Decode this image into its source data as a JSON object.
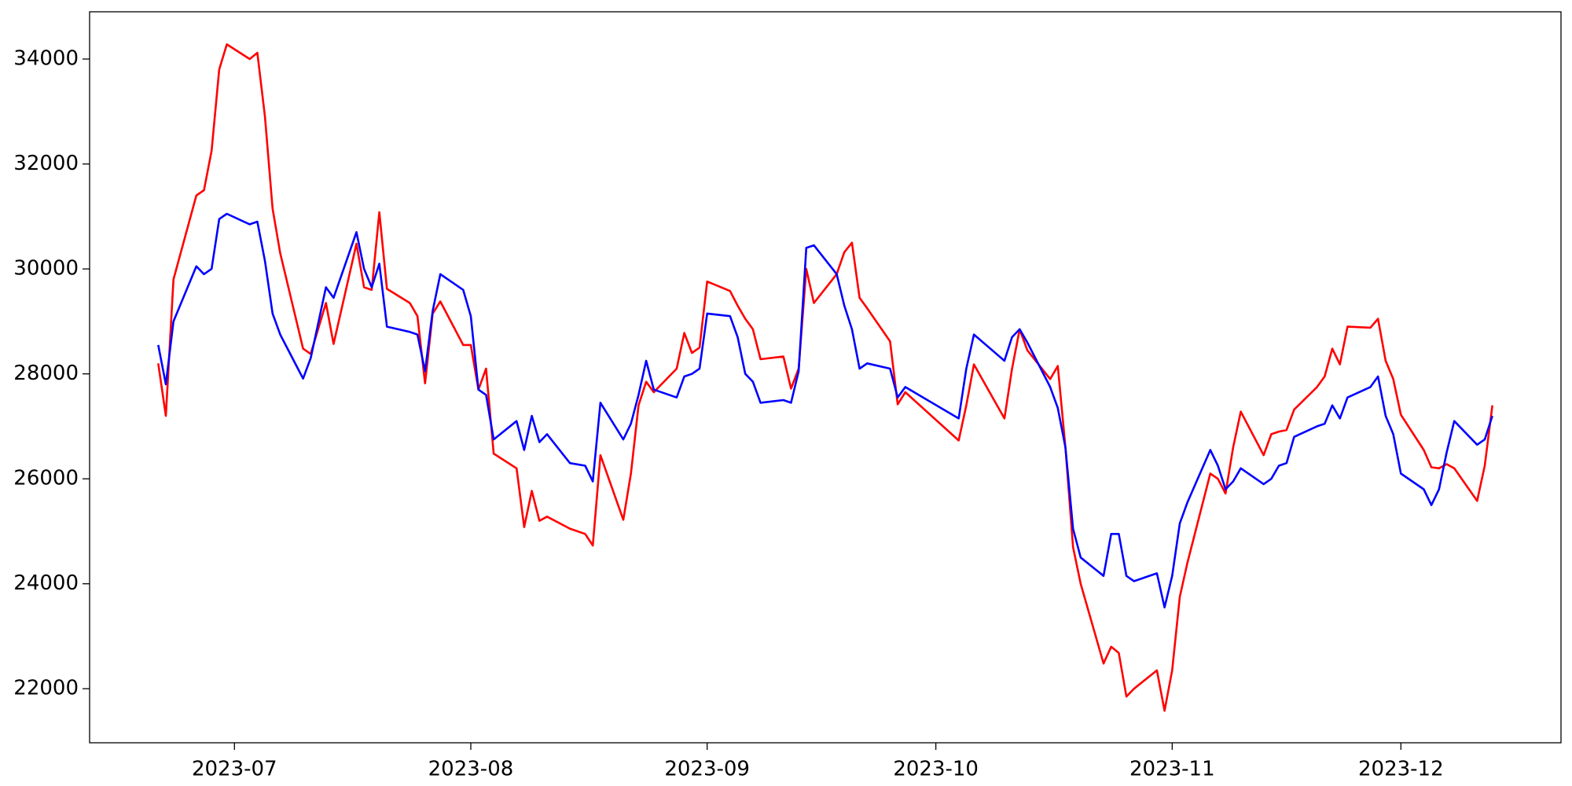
{
  "chart_data": {
    "type": "line",
    "x": [
      "2023-06-21",
      "2023-06-22",
      "2023-06-23",
      "2023-06-26",
      "2023-06-27",
      "2023-06-28",
      "2023-06-29",
      "2023-06-30",
      "2023-07-03",
      "2023-07-04",
      "2023-07-05",
      "2023-07-06",
      "2023-07-07",
      "2023-07-10",
      "2023-07-11",
      "2023-07-13",
      "2023-07-14",
      "2023-07-17",
      "2023-07-18",
      "2023-07-19",
      "2023-07-20",
      "2023-07-21",
      "2023-07-24",
      "2023-07-25",
      "2023-07-26",
      "2023-07-27",
      "2023-07-28",
      "2023-07-31",
      "2023-08-01",
      "2023-08-02",
      "2023-08-03",
      "2023-08-04",
      "2023-08-07",
      "2023-08-08",
      "2023-08-09",
      "2023-08-10",
      "2023-08-11",
      "2023-08-14",
      "2023-08-16",
      "2023-08-17",
      "2023-08-18",
      "2023-08-21",
      "2023-08-22",
      "2023-08-23",
      "2023-08-24",
      "2023-08-25",
      "2023-08-28",
      "2023-08-29",
      "2023-08-30",
      "2023-08-31",
      "2023-09-01",
      "2023-09-04",
      "2023-09-05",
      "2023-09-06",
      "2023-09-07",
      "2023-09-08",
      "2023-09-11",
      "2023-09-12",
      "2023-09-13",
      "2023-09-14",
      "2023-09-15",
      "2023-09-18",
      "2023-09-19",
      "2023-09-20",
      "2023-09-21",
      "2023-09-22",
      "2023-09-25",
      "2023-09-26",
      "2023-09-27",
      "2023-10-04",
      "2023-10-05",
      "2023-10-06",
      "2023-10-10",
      "2023-10-11",
      "2023-10-12",
      "2023-10-13",
      "2023-10-16",
      "2023-10-17",
      "2023-10-18",
      "2023-10-19",
      "2023-10-20",
      "2023-10-23",
      "2023-10-24",
      "2023-10-25",
      "2023-10-26",
      "2023-10-27",
      "2023-10-30",
      "2023-10-31",
      "2023-11-01",
      "2023-11-02",
      "2023-11-03",
      "2023-11-06",
      "2023-11-07",
      "2023-11-08",
      "2023-11-09",
      "2023-11-10",
      "2023-11-13",
      "2023-11-14",
      "2023-11-15",
      "2023-11-16",
      "2023-11-17",
      "2023-11-20",
      "2023-11-21",
      "2023-11-22",
      "2023-11-23",
      "2023-11-24",
      "2023-11-27",
      "2023-11-28",
      "2023-11-29",
      "2023-11-30",
      "2023-12-01",
      "2023-12-04",
      "2023-12-05",
      "2023-12-06",
      "2023-12-07",
      "2023-12-08",
      "2023-12-11",
      "2023-12-12",
      "2023-12-13"
    ],
    "series": [
      {
        "color": "#ff0000",
        "values": [
          28200,
          27200,
          29800,
          31400,
          31500,
          32250,
          33800,
          34280,
          34000,
          34120,
          32900,
          31150,
          30300,
          28480,
          28380,
          29350,
          28570,
          30480,
          29650,
          29600,
          31080,
          29620,
          29350,
          29100,
          27820,
          29150,
          29380,
          28550,
          28550,
          27700,
          28100,
          26480,
          26200,
          25080,
          25770,
          25200,
          25280,
          25050,
          24950,
          24730,
          26450,
          25220,
          26100,
          27400,
          27850,
          27650,
          28100,
          28780,
          28400,
          28500,
          29760,
          29580,
          29300,
          29050,
          28850,
          28280,
          28330,
          27720,
          28100,
          30000,
          29350,
          29900,
          30320,
          30500,
          29450,
          29250,
          28620,
          27420,
          27650,
          26730,
          27400,
          28180,
          27150,
          28100,
          28850,
          28450,
          27900,
          28150,
          26600,
          24700,
          24000,
          22480,
          22800,
          22680,
          21850,
          22000,
          22350,
          21580,
          22350,
          23750,
          24400,
          26100,
          26000,
          25720,
          26600,
          27280,
          26450,
          26850,
          26900,
          26930,
          27320,
          27750,
          27950,
          28480,
          28180,
          28900,
          28880,
          29050,
          28250,
          27900,
          27220,
          26550,
          26220,
          26200,
          26280,
          26200,
          25580,
          26250,
          27400
        ]
      },
      {
        "color": "#0000ff",
        "values": [
          28550,
          27800,
          29000,
          30050,
          29900,
          30000,
          30950,
          31050,
          30850,
          30900,
          30150,
          29150,
          28750,
          27910,
          28300,
          29650,
          29450,
          30700,
          30000,
          29650,
          30100,
          28900,
          28800,
          28750,
          28050,
          29200,
          29900,
          29600,
          29100,
          27700,
          27600,
          26750,
          27100,
          26550,
          27200,
          26700,
          26850,
          26300,
          26250,
          25950,
          27450,
          26750,
          27050,
          27600,
          28250,
          27700,
          27550,
          27950,
          28000,
          28100,
          29150,
          29100,
          28700,
          28000,
          27850,
          27450,
          27500,
          27450,
          28050,
          30400,
          30450,
          29900,
          29300,
          28850,
          28100,
          28200,
          28100,
          27550,
          27750,
          27150,
          28100,
          28750,
          28250,
          28700,
          28850,
          28600,
          27750,
          27350,
          26600,
          25050,
          24500,
          24150,
          24950,
          24950,
          24150,
          24050,
          24200,
          23550,
          24150,
          25150,
          25550,
          26550,
          26250,
          25800,
          25950,
          26200,
          25900,
          26000,
          26250,
          26300,
          26800,
          27000,
          27050,
          27400,
          27150,
          27550,
          27750,
          27950,
          27200,
          26850,
          26100,
          25800,
          25500,
          25800,
          26500,
          27100,
          26650,
          26750,
          27200
        ]
      }
    ],
    "xlim": [
      "2023-06-12",
      "2023-12-22"
    ],
    "xticks": [
      "2023-07",
      "2023-08",
      "2023-09",
      "2023-10",
      "2023-11",
      "2023-12"
    ],
    "ylim": [
      20970,
      34900
    ],
    "yticks": [
      22000,
      24000,
      26000,
      28000,
      30000,
      32000,
      34000
    ]
  }
}
